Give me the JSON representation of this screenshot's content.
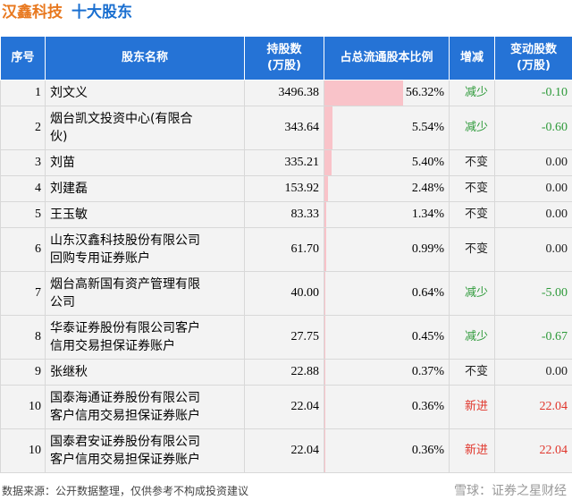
{
  "header": {
    "company": "汉鑫科技",
    "topic": "十大股东"
  },
  "table": {
    "columns": [
      "序号",
      "股东名称",
      [
        "持股数",
        "(万股)"
      ],
      "占总流通股本比例",
      "增减",
      [
        "变动股数",
        "(万股)"
      ]
    ],
    "rows": [
      [
        "1",
        "刘文义",
        "3496.38",
        {
          "value": 56.32,
          "label": "56.32%"
        },
        "减少",
        "-0.10"
      ],
      [
        "2",
        "烟台凯文投资中心(有限合伙)",
        "343.64",
        {
          "value": 5.54,
          "label": "5.54%"
        },
        "减少",
        "-0.60"
      ],
      [
        "3",
        "刘苗",
        "335.21",
        {
          "value": 5.4,
          "label": "5.40%"
        },
        "不变",
        "0.00"
      ],
      [
        "4",
        "刘建磊",
        "153.92",
        {
          "value": 2.48,
          "label": "2.48%"
        },
        "不变",
        "0.00"
      ],
      [
        "5",
        "王玉敏",
        "83.33",
        {
          "value": 1.34,
          "label": "1.34%"
        },
        "不变",
        "0.00"
      ],
      [
        "6",
        "山东汉鑫科技股份有限公司回购专用证券账户",
        "61.70",
        {
          "value": 0.99,
          "label": "0.99%"
        },
        "不变",
        "0.00"
      ],
      [
        "7",
        "烟台高新国有资产管理有限公司",
        "40.00",
        {
          "value": 0.64,
          "label": "0.64%"
        },
        "减少",
        "-5.00"
      ],
      [
        "8",
        "华泰证券股份有限公司客户信用交易担保证券账户",
        "27.75",
        {
          "value": 0.45,
          "label": "0.45%"
        },
        "减少",
        "-0.67"
      ],
      [
        "9",
        "张继秋",
        "22.88",
        {
          "value": 0.37,
          "label": "0.37%"
        },
        "不变",
        "0.00"
      ],
      [
        "10",
        "国泰海通证券股份有限公司客户信用交易担保证券账户",
        "22.04",
        {
          "value": 0.36,
          "label": "0.36%"
        },
        "新进",
        "22.04"
      ],
      [
        "10",
        "国泰君安证券股份有限公司客户信用交易担保证券账户",
        "22.04",
        {
          "value": 0.36,
          "label": "0.36%"
        },
        "新进",
        "22.04"
      ]
    ]
  },
  "footer": {
    "source": "数据来源：公开数据整理，仅供参考不构成投资建议",
    "brand": "雪球：证券之星财经"
  }
}
